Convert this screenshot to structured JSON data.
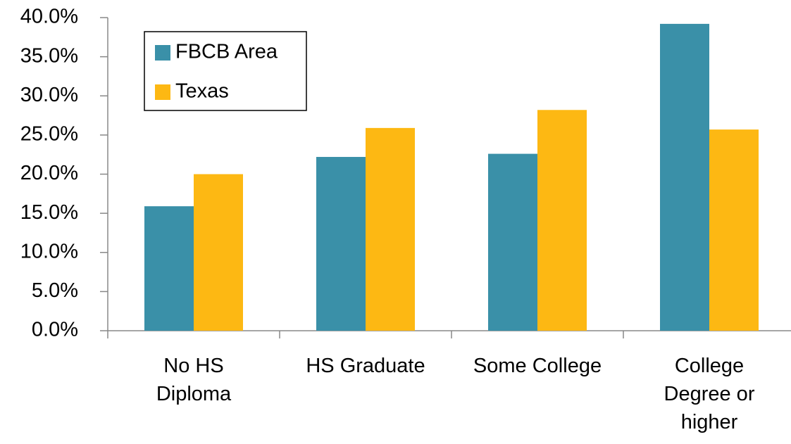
{
  "chart_data": {
    "type": "bar",
    "categories": [
      "No HS\nDiploma",
      "HS Graduate",
      "Some College",
      "College\nDegree or\nhigher"
    ],
    "series": [
      {
        "name": "FBCB Area",
        "color": "#3a90a8",
        "values": [
          15.9,
          22.2,
          22.6,
          39.2
        ]
      },
      {
        "name": "Texas",
        "color": "#fdb813",
        "values": [
          20.0,
          25.9,
          28.2,
          25.7
        ]
      }
    ],
    "ylim": [
      0,
      40
    ],
    "yticks": [
      {
        "value": 0,
        "label": "0.0%"
      },
      {
        "value": 5,
        "label": "5.0%"
      },
      {
        "value": 10,
        "label": "10.0%"
      },
      {
        "value": 15,
        "label": "15.0%"
      },
      {
        "value": 20,
        "label": "20.0%"
      },
      {
        "value": 25,
        "label": "25.0%"
      },
      {
        "value": 30,
        "label": "30.0%"
      },
      {
        "value": 35,
        "label": "35.0%"
      },
      {
        "value": 40,
        "label": "40.0%"
      }
    ],
    "legend": "upper left"
  }
}
